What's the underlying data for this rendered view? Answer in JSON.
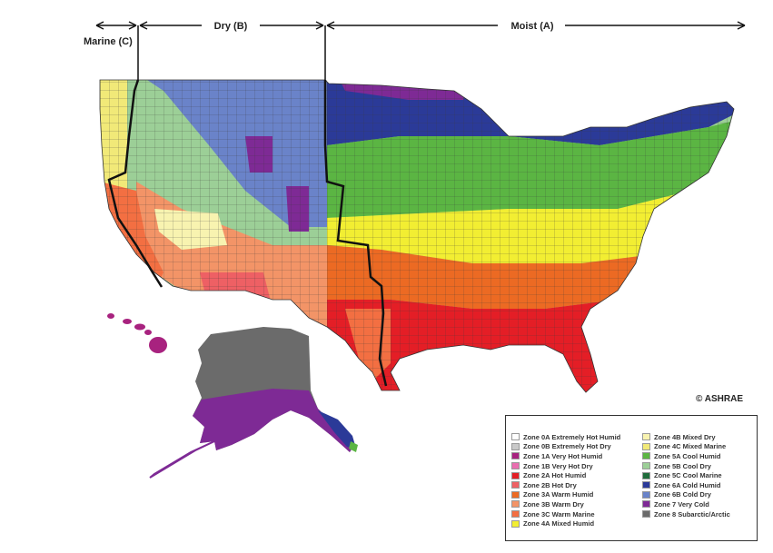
{
  "map": {
    "regions": {
      "marine": "Marine (C)",
      "dry": "Dry (B)",
      "moist": "Moist (A)"
    },
    "copyright": "© ASHRAE",
    "colors": {
      "z0a": "#ffffff",
      "z0b": "#c9c9c9",
      "z1a": "#a8227f",
      "z1b": "#ea6fb0",
      "z2a": "#e41e26",
      "z2b": "#ee6064",
      "z3a": "#ec6a23",
      "z3b": "#f39467",
      "z3c": "#f36f42",
      "z4a": "#f2ee32",
      "z4b": "#f8f3b0",
      "z4c": "#f1e978",
      "z5a": "#5bb543",
      "z5b": "#9ccf97",
      "z5c": "#1f6d3b",
      "z6a": "#2b3a98",
      "z6b": "#6a83c9",
      "z7": "#7e2a95",
      "z8": "#6b6b6b"
    }
  },
  "legend": {
    "left_column": [
      {
        "label": "Zone 0A Extremely Hot Humid",
        "color": "#ffffff"
      },
      {
        "label": "Zone 0B Extremely Hot Dry",
        "color": "#c9c9c9"
      },
      {
        "label": "Zone 1A Very Hot Humid",
        "color": "#a8227f"
      },
      {
        "label": "Zone 1B Very Hot Dry",
        "color": "#ea6fb0"
      },
      {
        "label": "Zone 2A Hot Humid",
        "color": "#e41e26"
      },
      {
        "label": "Zone 2B Hot Dry",
        "color": "#ee6064"
      },
      {
        "label": "Zone 3A Warm Humid",
        "color": "#ec6a23"
      },
      {
        "label": "Zone 3B Warm Dry",
        "color": "#f39467"
      },
      {
        "label": "Zone 3C Warm Marine",
        "color": "#f36f42"
      },
      {
        "label": "Zone 4A Mixed Humid",
        "color": "#f2ee32"
      }
    ],
    "right_column": [
      {
        "label": "Zone 4B Mixed Dry",
        "color": "#f8f3b0"
      },
      {
        "label": "Zone 4C Mixed Marine",
        "color": "#f1e978"
      },
      {
        "label": "Zone 5A Cool Humid",
        "color": "#5bb543"
      },
      {
        "label": "Zone 5B Cool Dry",
        "color": "#9ccf97"
      },
      {
        "label": "Zone 5C Cool Marine",
        "color": "#1f6d3b"
      },
      {
        "label": "Zone 6A Cold Humid",
        "color": "#2b3a98"
      },
      {
        "label": "Zone 6B Cold Dry",
        "color": "#6a83c9"
      },
      {
        "label": "Zone 7 Very Cold",
        "color": "#7e2a95"
      },
      {
        "label": "Zone 8 Subarctic/Arctic",
        "color": "#6b6b6b"
      }
    ]
  }
}
